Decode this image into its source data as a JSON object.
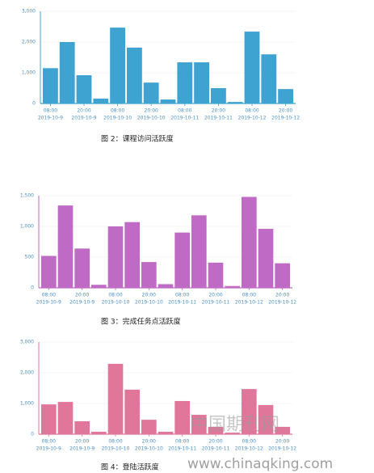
{
  "chart_data": [
    {
      "type": "bar",
      "title": "图 2：课程访问活跃度",
      "color": "#3fa3d1",
      "categories": [
        "08:00",
        null,
        "20:00",
        null,
        "08:00",
        null,
        "20:00",
        null,
        "08:00",
        null,
        "20:00",
        null,
        "08:00",
        null,
        "20:00"
      ],
      "dates": [
        "2019-10-9",
        null,
        "2019-10-9",
        null,
        "2019-10-10",
        null,
        "2019-10-10",
        null,
        "2019-10-11",
        null,
        "2019-10-11",
        null,
        "2019-10-12",
        null,
        "2019-10-12"
      ],
      "values": [
        1150,
        2000,
        920,
        160,
        2470,
        1820,
        680,
        130,
        1340,
        1340,
        500,
        50,
        2340,
        1600,
        470
      ],
      "ylim": [
        0,
        3000
      ],
      "yticks": [
        0,
        {
          "value": 1000,
          "label": "1,000"
        },
        {
          "value": 2000,
          "label": "2,000"
        },
        {
          "value": 3000,
          "label": "3,000"
        }
      ],
      "grid": true
    },
    {
      "type": "bar",
      "title": "图 3：完成任务点活跃度",
      "color": "#bf6bc6",
      "categories": [
        "08:00",
        null,
        "20:00",
        null,
        "08:00",
        null,
        "20:00",
        null,
        "08:00",
        null,
        "20:00",
        null,
        "08:00",
        null,
        "20:00"
      ],
      "dates": [
        "2019-10-9",
        null,
        "2019-10-9",
        null,
        "2019-10-10",
        null,
        "2019-10-10",
        null,
        "2019-10-11",
        null,
        "2019-10-11",
        null,
        "2019-10-12",
        null,
        "2019-10-12"
      ],
      "values": [
        520,
        1340,
        640,
        50,
        1000,
        1070,
        420,
        60,
        900,
        1180,
        410,
        30,
        1480,
        960,
        400
      ],
      "ylim": [
        0,
        1500
      ],
      "yticks": [
        0,
        500,
        {
          "value": 1000,
          "label": "1,000"
        },
        {
          "value": 1500,
          "label": "1,500"
        }
      ],
      "grid": true
    },
    {
      "type": "bar",
      "title": "图 4：登陆活跃度",
      "color": "#e0779a",
      "categories": [
        "08:00",
        null,
        "20:00",
        null,
        "08:00",
        null,
        "20:00",
        null,
        "08:00",
        null,
        "20:00",
        null,
        "08:00",
        null,
        "20:00"
      ],
      "dates": [
        "2019-10-9",
        null,
        "2019-10-9",
        null,
        "2019-10-10",
        null,
        "2019-10-10",
        null,
        "2019-10-11",
        null,
        "2019-10-11",
        null,
        "2019-10-12",
        null,
        "2019-10-12"
      ],
      "values": [
        970,
        1050,
        420,
        80,
        2290,
        1450,
        470,
        80,
        1080,
        630,
        240,
        50,
        1470,
        950,
        240
      ],
      "ylim": [
        0,
        3000
      ],
      "yticks": [
        0,
        {
          "value": 1000,
          "label": "1,000"
        },
        {
          "value": 2000,
          "label": "2,000"
        },
        {
          "value": 3000,
          "label": "3,000"
        }
      ],
      "grid": true
    }
  ],
  "watermark": {
    "logo": "中国期刊网",
    "url": "www.chinaqking.com"
  }
}
